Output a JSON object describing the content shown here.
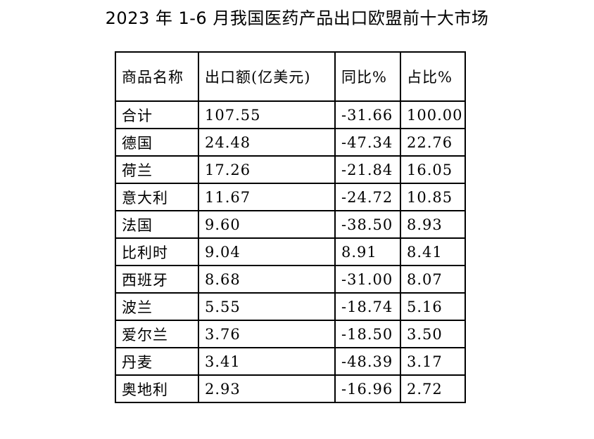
{
  "title": "2023 年 1-6 月我国医药产品出口欧盟前十大市场",
  "table": {
    "headers": [
      "商品名称",
      "出口额(亿美元)",
      "同比%",
      "占比%"
    ],
    "rows": [
      [
        "合计",
        "107.55",
        "-31.66",
        "100.00"
      ],
      [
        "德国",
        "24.48",
        "-47.34",
        "22.76"
      ],
      [
        "荷兰",
        "17.26",
        "-21.84",
        "16.05"
      ],
      [
        "意大利",
        "11.67",
        "-24.72",
        "10.85"
      ],
      [
        "法国",
        "9.60",
        "-38.50",
        "8.93"
      ],
      [
        "比利时",
        "9.04",
        "8.91",
        "8.41"
      ],
      [
        "西班牙",
        "8.68",
        "-31.00",
        "8.07"
      ],
      [
        "波兰",
        "5.55",
        "-18.74",
        "5.16"
      ],
      [
        "爱尔兰",
        "3.76",
        "-18.50",
        "3.50"
      ],
      [
        "丹麦",
        "3.41",
        "-48.39",
        "3.17"
      ],
      [
        "奥地利",
        "2.93",
        "-16.96",
        "2.72"
      ]
    ]
  }
}
